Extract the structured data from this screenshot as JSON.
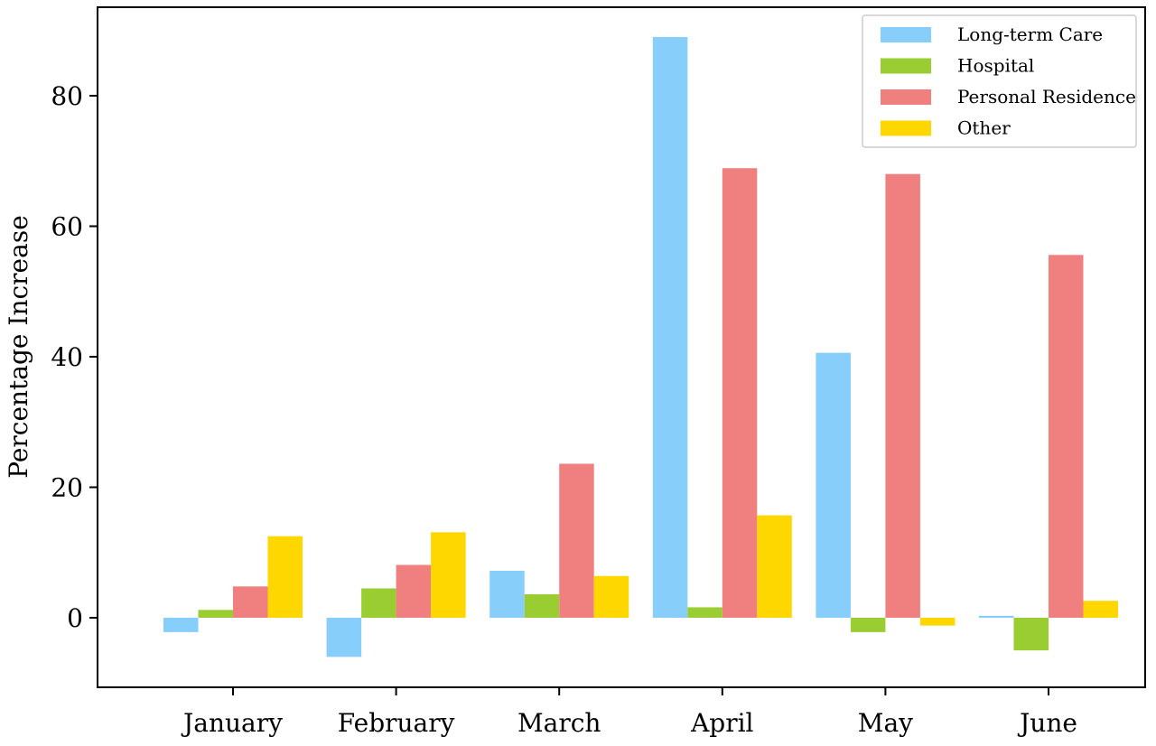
{
  "chart_data": {
    "type": "bar",
    "title": "",
    "xlabel": "",
    "ylabel": "Percentage Increase",
    "categories": [
      "January",
      "February",
      "March",
      "April",
      "May",
      "June"
    ],
    "series": [
      {
        "name": "Long-term Care",
        "color": "#87CEFA",
        "values": [
          -2.2,
          -6.0,
          7.2,
          89.0,
          40.6,
          0.3
        ]
      },
      {
        "name": "Hospital",
        "color": "#9ACD32",
        "values": [
          1.2,
          4.5,
          3.6,
          1.6,
          -2.2,
          -5.0
        ]
      },
      {
        "name": "Personal Residence",
        "color": "#F08080",
        "values": [
          4.8,
          8.1,
          23.6,
          68.9,
          68.0,
          55.6
        ]
      },
      {
        "name": "Other",
        "color": "#FFD700",
        "values": [
          12.5,
          13.1,
          6.4,
          15.7,
          -1.2,
          2.6
        ]
      }
    ],
    "yticks": [
      0,
      20,
      40,
      60,
      80
    ],
    "ylim": [
      -10.5,
      93.5
    ],
    "legend_position": "top-right",
    "grid": false
  }
}
